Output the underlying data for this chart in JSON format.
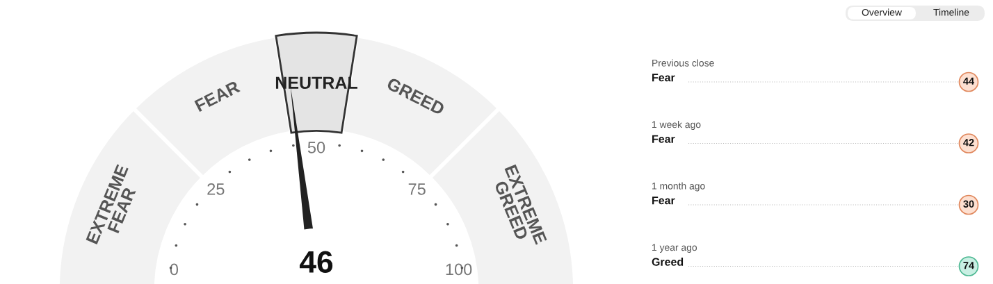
{
  "chart_data": [
    {
      "type": "donut",
      "categories": [
        "EXTREME FEAR",
        "FEAR",
        "NEUTRAL",
        "GREED",
        "EXTREME GREED"
      ],
      "values": [
        25,
        20,
        10,
        20,
        25
      ],
      "colors": [
        "#f2f2f2",
        "#f2f2f2",
        "#e4e4e4",
        "#f2f2f2",
        "#f2f2f2"
      ],
      "needle": "NEUTRAL",
      "annotations": [
        "46",
        "0",
        "25",
        "50",
        "75",
        "100"
      ]
    },
    {
      "type": "other",
      "categories": [
        "Previous close",
        "1 week ago",
        "1 month ago",
        "1 year ago"
      ],
      "values": [
        44,
        42,
        30,
        74
      ],
      "colors": [
        "#fde0d1",
        "#fde0d1",
        "#fde0d1",
        "#c9efe3"
      ],
      "data_labels": true,
      "annotations": [
        "Fear",
        "Fear",
        "Fear",
        "Greed",
        "Overview",
        "Timeline"
      ]
    }
  ]
}
